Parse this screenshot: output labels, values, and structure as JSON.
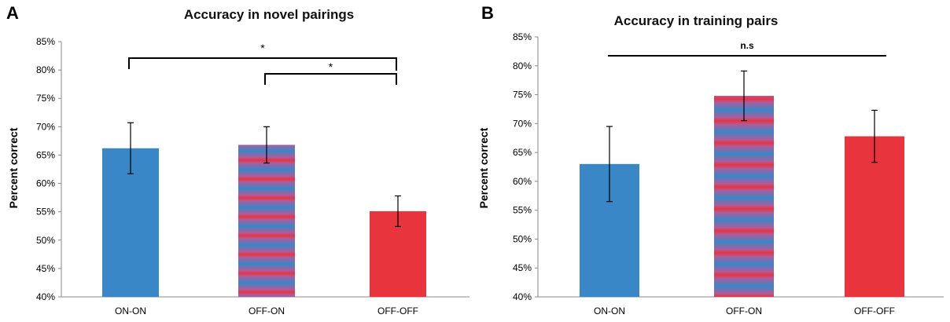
{
  "chart_data": [
    {
      "type": "bar",
      "panel": "A",
      "title": "Accuracy in novel pairings",
      "xlabel": "",
      "ylabel": "Percent correct",
      "ylim": [
        40,
        85
      ],
      "yticks": [
        "40%",
        "45%",
        "50%",
        "55%",
        "60%",
        "65%",
        "70%",
        "75%",
        "80%",
        "85%"
      ],
      "categories": [
        "ON-ON",
        "OFF-ON",
        "OFF-OFF"
      ],
      "values": [
        66.2,
        66.8,
        55.1
      ],
      "errors": [
        4.5,
        3.2,
        2.7
      ],
      "fills": [
        "solid-blue",
        "blue-red-stripes",
        "solid-red"
      ],
      "grid": false,
      "significance": [
        {
          "from": "ON-ON",
          "to": "OFF-OFF",
          "label": "*"
        },
        {
          "from": "OFF-ON",
          "to": "OFF-OFF",
          "label": "*"
        }
      ]
    },
    {
      "type": "bar",
      "panel": "B",
      "title": "Accuracy in training pairs",
      "xlabel": "",
      "ylabel": "Percent correct",
      "ylim": [
        40,
        85
      ],
      "yticks": [
        "40%",
        "45%",
        "50%",
        "55%",
        "60%",
        "65%",
        "70%",
        "75%",
        "80%",
        "85%"
      ],
      "categories": [
        "ON-ON",
        "OFF-ON",
        "OFF-OFF"
      ],
      "values": [
        63.0,
        74.8,
        67.8
      ],
      "errors": [
        6.5,
        4.3,
        4.5
      ],
      "fills": [
        "solid-blue",
        "blue-red-stripes",
        "solid-red"
      ],
      "grid": false,
      "significance": [
        {
          "from": "ON-ON",
          "to": "OFF-OFF",
          "label": "n.s"
        }
      ]
    }
  ],
  "colors": {
    "blue": "#3a87c8",
    "red": "#e8343d",
    "axis": "#8a8a8a",
    "ink": "#000000"
  }
}
